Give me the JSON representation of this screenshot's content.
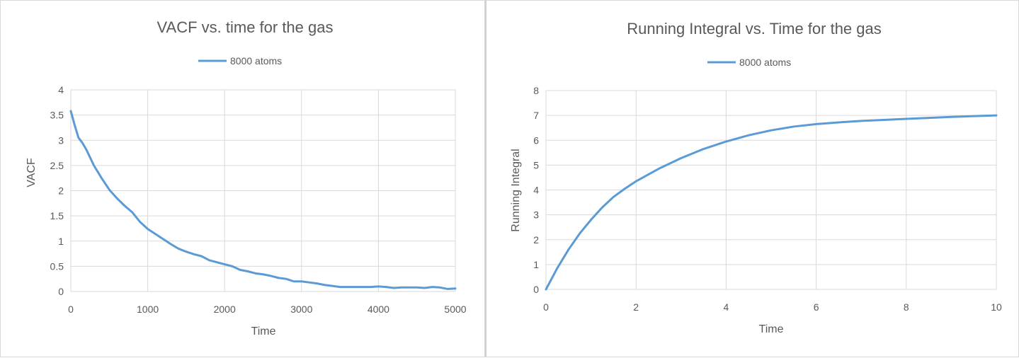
{
  "chart_data": [
    {
      "type": "line",
      "title": "VACF vs. time for the gas",
      "xlabel": "Time",
      "ylabel": "VACF",
      "xlim": [
        0,
        5000
      ],
      "ylim": [
        0,
        4
      ],
      "xticks": [
        0,
        1000,
        2000,
        3000,
        4000,
        5000
      ],
      "yticks": [
        0,
        0.5,
        1,
        1.5,
        2,
        2.5,
        3,
        3.5,
        4
      ],
      "ytick_labels": [
        "0",
        "0.5",
        "1",
        "1.5",
        "2",
        "2.5",
        "3",
        "3.5",
        "4"
      ],
      "grid": true,
      "legend_position": "top",
      "color": "#5b9bd5",
      "series": [
        {
          "name": "8000 atoms",
          "x": [
            0,
            50,
            100,
            150,
            200,
            300,
            400,
            500,
            600,
            700,
            800,
            900,
            1000,
            1100,
            1200,
            1300,
            1400,
            1500,
            1600,
            1700,
            1800,
            1900,
            2000,
            2100,
            2200,
            2300,
            2400,
            2500,
            2600,
            2700,
            2800,
            2900,
            3000,
            3100,
            3200,
            3300,
            3400,
            3500,
            3600,
            3700,
            3800,
            3900,
            4000,
            4100,
            4200,
            4300,
            4400,
            4500,
            4600,
            4700,
            4800,
            4900,
            5000
          ],
          "y": [
            3.58,
            3.3,
            3.05,
            2.95,
            2.82,
            2.5,
            2.25,
            2.02,
            1.85,
            1.7,
            1.57,
            1.38,
            1.24,
            1.14,
            1.04,
            0.94,
            0.85,
            0.79,
            0.74,
            0.7,
            0.62,
            0.58,
            0.54,
            0.5,
            0.43,
            0.4,
            0.36,
            0.34,
            0.31,
            0.27,
            0.25,
            0.2,
            0.2,
            0.18,
            0.16,
            0.13,
            0.11,
            0.09,
            0.09,
            0.09,
            0.09,
            0.09,
            0.1,
            0.09,
            0.07,
            0.08,
            0.08,
            0.08,
            0.07,
            0.09,
            0.08,
            0.05,
            0.06
          ]
        }
      ]
    },
    {
      "type": "line",
      "title": "Running Integral vs. Time for the gas",
      "xlabel": "Time",
      "ylabel": "Running Integral",
      "xlim": [
        0,
        10
      ],
      "ylim": [
        0,
        8
      ],
      "xticks": [
        0,
        2,
        4,
        6,
        8,
        10
      ],
      "yticks": [
        0,
        1,
        2,
        3,
        4,
        5,
        6,
        7,
        8
      ],
      "ytick_labels": [
        "0",
        "1",
        "2",
        "3",
        "4",
        "5",
        "6",
        "7",
        "8"
      ],
      "grid": true,
      "legend_position": "top",
      "color": "#5b9bd5",
      "series": [
        {
          "name": "8000 atoms",
          "x": [
            0,
            0.25,
            0.5,
            0.75,
            1,
            1.25,
            1.5,
            1.75,
            2,
            2.5,
            3,
            3.5,
            4,
            4.5,
            5,
            5.5,
            6,
            6.5,
            7,
            7.5,
            8,
            8.5,
            9,
            9.5,
            10
          ],
          "y": [
            0,
            0.85,
            1.6,
            2.25,
            2.8,
            3.3,
            3.72,
            4.05,
            4.35,
            4.85,
            5.28,
            5.65,
            5.95,
            6.2,
            6.4,
            6.55,
            6.65,
            6.72,
            6.78,
            6.82,
            6.86,
            6.9,
            6.94,
            6.97,
            7.0
          ]
        }
      ]
    }
  ]
}
